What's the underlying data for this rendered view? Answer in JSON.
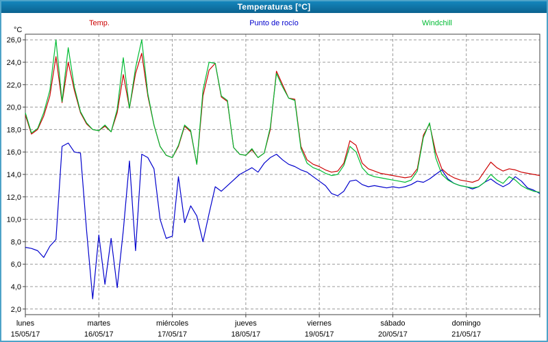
{
  "window": {
    "title": "Temperaturas [°C]"
  },
  "colors": {
    "frame": "#4ea3c8",
    "titlebar": "#0b628f",
    "plot_border": "#404040",
    "gridline": "#989898"
  },
  "chart_data": {
    "type": "line",
    "title": "Temperaturas [°C]",
    "ylabel": "°C",
    "ylim": [
      1.5,
      26.5
    ],
    "yticks": [
      2,
      4,
      6,
      8,
      10,
      12,
      14,
      16,
      18,
      20,
      22,
      24,
      26
    ],
    "ytick_format": "comma-decimal",
    "grid": "dashed",
    "x_range_days": 7,
    "points_per_day": 12,
    "x_days": [
      {
        "name": "lunes",
        "date": "15/05/17"
      },
      {
        "name": "martes",
        "date": "16/05/17"
      },
      {
        "name": "miércoles",
        "date": "17/05/17"
      },
      {
        "name": "jueves",
        "date": "18/05/17"
      },
      {
        "name": "viernes",
        "date": "19/05/17"
      },
      {
        "name": "sábado",
        "date": "20/05/17"
      },
      {
        "name": "domingo",
        "date": "21/05/17"
      }
    ],
    "series": [
      {
        "name": "Temp.",
        "color": "#cc0000",
        "values": [
          19.3,
          17.6,
          18.0,
          19.2,
          21.0,
          24.5,
          20.4,
          24.0,
          21.5,
          19.5,
          18.5,
          18.0,
          17.9,
          18.3,
          17.8,
          19.5,
          22.9,
          19.9,
          23.0,
          24.8,
          21.0,
          18.4,
          16.5,
          15.7,
          15.5,
          16.5,
          18.3,
          17.8,
          14.9,
          21.0,
          23.3,
          23.9,
          20.9,
          20.5,
          16.4,
          15.8,
          15.7,
          16.2,
          15.5,
          15.9,
          18.0,
          23.2,
          22.0,
          20.8,
          20.7,
          16.5,
          15.3,
          14.9,
          14.7,
          14.4,
          14.2,
          14.3,
          15.0,
          17.0,
          16.6,
          15.0,
          14.5,
          14.3,
          14.1,
          14.0,
          13.9,
          13.8,
          13.7,
          13.8,
          14.5,
          17.5,
          18.5,
          16.0,
          14.5,
          14.0,
          13.7,
          13.5,
          13.4,
          13.3,
          13.5,
          14.3,
          15.1,
          14.6,
          14.3,
          14.5,
          14.4,
          14.2,
          14.1,
          14.0,
          13.9
        ]
      },
      {
        "name": "Punto de rocío",
        "color": "#0000cc",
        "values": [
          7.5,
          7.4,
          7.2,
          6.6,
          7.6,
          8.2,
          16.5,
          16.8,
          16.0,
          15.9,
          9.0,
          2.9,
          8.6,
          4.2,
          8.3,
          3.9,
          9.0,
          15.2,
          7.2,
          15.8,
          15.5,
          14.5,
          10.0,
          8.3,
          8.5,
          13.8,
          9.7,
          11.2,
          10.3,
          8.0,
          10.5,
          12.9,
          12.5,
          13.0,
          13.5,
          14.0,
          14.3,
          14.6,
          14.2,
          15.0,
          15.5,
          15.8,
          15.3,
          14.9,
          14.7,
          14.4,
          14.2,
          13.8,
          13.4,
          13.0,
          12.3,
          12.1,
          12.5,
          13.4,
          13.5,
          13.1,
          12.9,
          13.0,
          12.9,
          12.8,
          12.9,
          12.8,
          12.9,
          13.1,
          13.4,
          13.3,
          13.6,
          14.0,
          14.4,
          13.6,
          13.2,
          13.0,
          12.9,
          12.7,
          12.9,
          13.3,
          13.6,
          13.2,
          12.9,
          13.2,
          13.8,
          13.4,
          12.8,
          12.6,
          12.3
        ]
      },
      {
        "name": "Windchill",
        "color": "#00bb33",
        "values": [
          19.5,
          17.7,
          18.1,
          19.5,
          21.5,
          26.0,
          20.5,
          25.3,
          21.8,
          19.6,
          18.6,
          18.0,
          17.9,
          18.4,
          17.8,
          19.8,
          24.4,
          19.9,
          23.5,
          26.0,
          21.2,
          18.4,
          16.5,
          15.7,
          15.5,
          16.6,
          18.4,
          17.9,
          14.9,
          21.5,
          24.0,
          23.9,
          21.0,
          20.6,
          16.4,
          15.8,
          15.7,
          16.3,
          15.5,
          15.9,
          18.2,
          23.0,
          21.8,
          20.8,
          20.6,
          16.3,
          15.0,
          14.6,
          14.4,
          14.1,
          13.9,
          14.0,
          14.8,
          16.5,
          16.0,
          14.6,
          14.0,
          13.8,
          13.7,
          13.6,
          13.5,
          13.4,
          13.3,
          13.5,
          14.3,
          17.3,
          18.6,
          15.5,
          14.0,
          13.5,
          13.2,
          13.0,
          12.9,
          12.8,
          12.9,
          13.3,
          14.0,
          13.5,
          13.2,
          13.8,
          13.5,
          13.0,
          12.7,
          12.5,
          12.4
        ]
      }
    ]
  }
}
